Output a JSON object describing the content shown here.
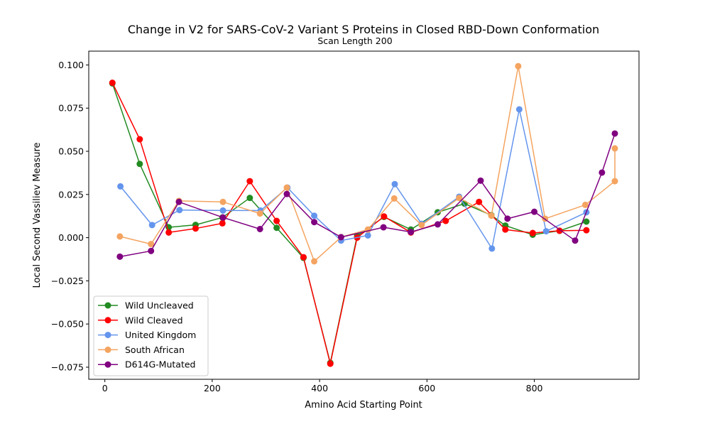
{
  "chart_data": {
    "type": "line",
    "title": "Change in V2 for SARS-CoV-2 Variant S Proteins in Closed RBD-Down Conformation",
    "subtitle": "Scan Length 200",
    "xlabel": "Amino Acid Starting Point",
    "ylabel": "Local Second Vassiliev Measure",
    "xlim": [
      -30,
      995
    ],
    "ylim": [
      -0.082,
      0.108
    ],
    "xticks": [
      0,
      200,
      400,
      600,
      800
    ],
    "xtick_labels": [
      "0",
      "200",
      "400",
      "600",
      "800"
    ],
    "yticks": [
      -0.075,
      -0.05,
      -0.025,
      0.0,
      0.025,
      0.05,
      0.075,
      0.1
    ],
    "ytick_labels": [
      "−0.075",
      "−0.050",
      "−0.025",
      "0.000",
      "0.025",
      "0.050",
      "0.075",
      "0.100"
    ],
    "grid": false,
    "legend_position": "lower-left",
    "series": [
      {
        "name": "Wild Uncleaved",
        "color": "#228b22",
        "x": [
          14,
          65,
          119,
          169,
          219,
          270,
          320,
          370,
          420,
          470,
          520,
          570,
          620,
          670,
          720,
          746,
          797,
          847,
          897
        ],
        "y": [
          0.0893,
          0.0427,
          0.006,
          0.0074,
          0.0117,
          0.023,
          0.0057,
          -0.0117,
          -0.0725,
          0.001,
          0.012,
          0.0047,
          0.0147,
          0.0197,
          0.013,
          0.007,
          0.0017,
          0.004,
          0.0093
        ]
      },
      {
        "name": "Wild Cleaved",
        "color": "#ff0000",
        "x": [
          14,
          65,
          119,
          169,
          219,
          270,
          320,
          370,
          420,
          470,
          520,
          570,
          635,
          697,
          746,
          797,
          847,
          897
        ],
        "y": [
          0.0897,
          0.057,
          0.003,
          0.0053,
          0.0083,
          0.0327,
          0.0097,
          -0.0113,
          -0.073,
          0.0,
          0.0123,
          0.003,
          0.0097,
          0.0207,
          0.0047,
          0.0027,
          0.004,
          0.0043
        ]
      },
      {
        "name": "United Kingdom",
        "color": "#6495ed",
        "x": [
          29,
          88,
          139,
          220,
          290,
          340,
          390,
          440,
          490,
          540,
          590,
          660,
          721,
          772,
          822,
          897
        ],
        "y": [
          0.0297,
          0.0073,
          0.016,
          0.0157,
          0.0157,
          0.029,
          0.0127,
          -0.0017,
          0.0013,
          0.031,
          0.008,
          0.0237,
          -0.0063,
          0.0743,
          0.0037,
          0.0147
        ]
      },
      {
        "name": "South African",
        "color": "#f4a460",
        "x": [
          28,
          86,
          138,
          220,
          289,
          339,
          390,
          440,
          490,
          539,
          590,
          660,
          720,
          770,
          820,
          895,
          950,
          950
        ],
        "y": [
          0.0007,
          -0.0037,
          0.0213,
          0.0207,
          0.014,
          0.029,
          -0.0137,
          0.0003,
          0.0047,
          0.0227,
          0.0073,
          0.023,
          0.0127,
          0.0993,
          0.011,
          0.019,
          0.0327,
          0.0517
        ]
      },
      {
        "name": "D614G-Mutated",
        "color": "#800080",
        "x": [
          28,
          86,
          138,
          220,
          289,
          339,
          390,
          440,
          519,
          570,
          620,
          700,
          750,
          800,
          876,
          926,
          950
        ],
        "y": [
          -0.011,
          -0.0077,
          0.0207,
          0.0117,
          0.005,
          0.0253,
          0.009,
          0.0003,
          0.006,
          0.0033,
          0.0077,
          0.033,
          0.011,
          0.015,
          -0.0017,
          0.0377,
          0.0603
        ]
      }
    ]
  }
}
